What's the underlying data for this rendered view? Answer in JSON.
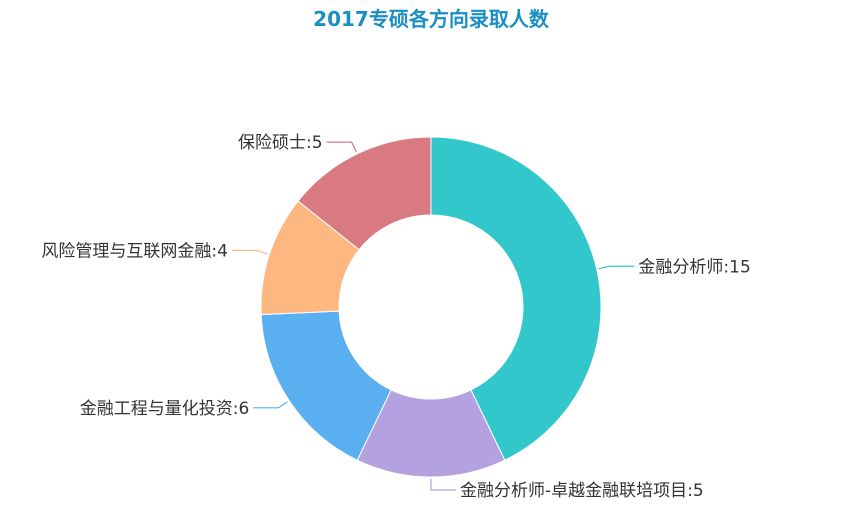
{
  "chart_data": {
    "type": "pie",
    "title": "2017专硕各方向录取人数",
    "title_color": "#1a8fc4",
    "donut": true,
    "start_angle_clockwise_from_top": 0,
    "slices": [
      {
        "label": "金融分析师",
        "value": 15,
        "display": "金融分析师:15",
        "color": "#32c8cb"
      },
      {
        "label": "金融分析师-卓越金融联培项目",
        "value": 5,
        "display": "金融分析师-卓越金融联培项目:5",
        "color": "#b4a2e0"
      },
      {
        "label": "金融工程与量化投资",
        "value": 6,
        "display": "金融工程与量化投资:6",
        "color": "#5aaff0"
      },
      {
        "label": "风险管理与互联网金融",
        "value": 4,
        "display": "风险管理与互联网金融:4",
        "color": "#fdb882"
      },
      {
        "label": "保险硕士",
        "value": 5,
        "display": "保险硕士:5",
        "color": "#d97a80"
      }
    ]
  }
}
